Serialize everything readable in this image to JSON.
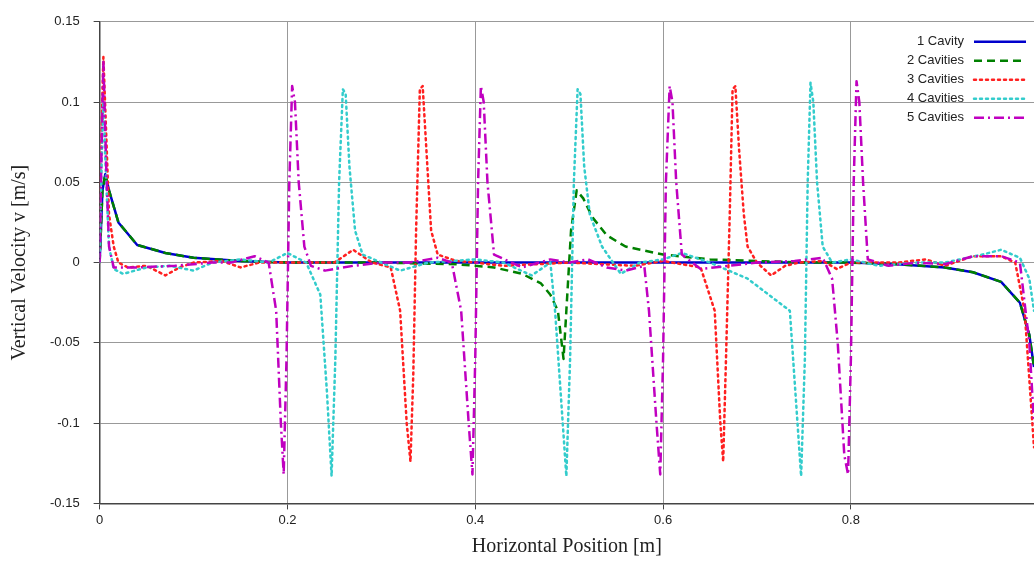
{
  "chart_data": {
    "type": "line",
    "xlabel": "Horizontal Position [m]",
    "ylabel": "Vertical Velocity v [m/s]",
    "xlim": [
      0,
      0.995
    ],
    "xticks": [
      0,
      0.2,
      0.4,
      0.6,
      0.8
    ],
    "ylim": [
      -0.15,
      0.15
    ],
    "yticks": [
      -0.15,
      -0.1,
      -0.05,
      0,
      0.05,
      0.1,
      0.15
    ],
    "grid": true,
    "legend": "top right",
    "marker": "none",
    "series": [
      {
        "name": "1 Cavity",
        "color": "#0000cc",
        "line_style": "solid",
        "x": [
          0,
          0.003,
          0.006,
          0.01,
          0.02,
          0.04,
          0.07,
          0.1,
          0.15,
          0.2,
          0.8,
          0.85,
          0.9,
          0.93,
          0.96,
          0.98,
          0.99,
          0.995
        ],
        "values": [
          0,
          0.045,
          0.055,
          0.045,
          0.025,
          0.011,
          0.006,
          0.003,
          0.001,
          0,
          0,
          -0.001,
          -0.003,
          -0.006,
          -0.012,
          -0.025,
          -0.045,
          -0.065
        ]
      },
      {
        "name": "2 Cavities",
        "color": "#008000",
        "line_style": "dashed",
        "x": [
          0,
          0.003,
          0.006,
          0.01,
          0.02,
          0.04,
          0.07,
          0.1,
          0.15,
          0.2,
          0.3,
          0.38,
          0.42,
          0.45,
          0.47,
          0.48,
          0.488,
          0.494,
          0.497,
          0.502,
          0.508,
          0.515,
          0.525,
          0.54,
          0.56,
          0.6,
          0.65,
          0.7,
          0.75,
          0.8,
          0.85,
          0.9,
          0.93,
          0.96,
          0.98,
          0.99,
          0.995
        ],
        "values": [
          0,
          0.045,
          0.055,
          0.045,
          0.025,
          0.011,
          0.006,
          0.003,
          0.001,
          0,
          0,
          -0.001,
          -0.003,
          -0.007,
          -0.013,
          -0.02,
          -0.03,
          -0.06,
          -0.03,
          0.02,
          0.045,
          0.04,
          0.028,
          0.017,
          0.01,
          0.005,
          0.002,
          0.001,
          0,
          0,
          -0.001,
          -0.003,
          -0.006,
          -0.012,
          -0.025,
          -0.045,
          -0.065
        ]
      },
      {
        "name": "3 Cavities",
        "color": "#ff2020",
        "line_style": "dotted",
        "x": [
          0,
          0.002,
          0.004,
          0.007,
          0.01,
          0.015,
          0.02,
          0.03,
          0.05,
          0.07,
          0.085,
          0.1,
          0.13,
          0.15,
          0.17,
          0.2,
          0.25,
          0.27,
          0.29,
          0.31,
          0.32,
          0.327,
          0.331,
          0.334,
          0.337,
          0.341,
          0.344,
          0.348,
          0.353,
          0.36,
          0.38,
          0.4,
          0.43,
          0.5,
          0.57,
          0.6,
          0.64,
          0.655,
          0.661,
          0.664,
          0.667,
          0.671,
          0.674,
          0.677,
          0.681,
          0.686,
          0.69,
          0.7,
          0.715,
          0.73,
          0.745,
          0.77,
          0.785,
          0.8,
          0.85,
          0.88,
          0.9,
          0.93,
          0.96,
          0.975,
          0.985,
          0.995
        ],
        "values": [
          0,
          0.08,
          0.128,
          0.08,
          0.03,
          0.01,
          0,
          -0.003,
          -0.002,
          -0.008,
          -0.003,
          0,
          0.001,
          -0.003,
          0,
          0,
          0,
          0.008,
          0,
          -0.003,
          -0.03,
          -0.1,
          -0.124,
          -0.07,
          0.02,
          0.108,
          0.11,
          0.07,
          0.02,
          0.005,
          0.001,
          0,
          -0.002,
          0,
          -0.002,
          0.001,
          -0.003,
          -0.03,
          -0.1,
          -0.124,
          -0.06,
          0.03,
          0.108,
          0.11,
          0.07,
          0.03,
          0.01,
          0,
          -0.008,
          -0.002,
          0,
          0.001,
          -0.004,
          0,
          0,
          0.002,
          -0.002,
          0.004,
          0.004,
          0,
          -0.03,
          -0.115
        ]
      },
      {
        "name": "4 Cavities",
        "color": "#33cccc",
        "line_style": "dotted",
        "x": [
          0,
          0.002,
          0.004,
          0.007,
          0.01,
          0.015,
          0.025,
          0.05,
          0.075,
          0.1,
          0.12,
          0.15,
          0.18,
          0.2,
          0.22,
          0.235,
          0.242,
          0.247,
          0.251,
          0.255,
          0.259,
          0.262,
          0.266,
          0.272,
          0.28,
          0.3,
          0.32,
          0.35,
          0.4,
          0.43,
          0.46,
          0.48,
          0.485,
          0.492,
          0.497,
          0.501,
          0.505,
          0.509,
          0.512,
          0.516,
          0.522,
          0.535,
          0.555,
          0.575,
          0.6,
          0.62,
          0.65,
          0.69,
          0.735,
          0.742,
          0.747,
          0.751,
          0.754,
          0.757,
          0.76,
          0.764,
          0.77,
          0.78,
          0.8,
          0.83,
          0.87,
          0.9,
          0.94,
          0.96,
          0.98,
          0.99,
          0.995
        ],
        "values": [
          0,
          0.06,
          0.1,
          0.05,
          0.01,
          -0.004,
          -0.007,
          -0.003,
          -0.002,
          -0.005,
          0,
          0.002,
          0,
          0.006,
          0,
          -0.02,
          -0.08,
          -0.133,
          -0.06,
          0.05,
          0.108,
          0.105,
          0.06,
          0.02,
          0.005,
          0,
          -0.005,
          0,
          0.002,
          0,
          -0.008,
          0,
          -0.03,
          -0.09,
          -0.133,
          -0.06,
          0.05,
          0.108,
          0.105,
          0.06,
          0.03,
          0.01,
          -0.007,
          0,
          0.002,
          0.006,
          0,
          -0.01,
          -0.03,
          -0.09,
          -0.133,
          -0.06,
          0.05,
          0.112,
          0.1,
          0.05,
          0.01,
          0,
          0.002,
          -0.002,
          0,
          0,
          0.005,
          0.008,
          0.003,
          -0.01,
          -0.03
        ]
      },
      {
        "name": "5 Cavities",
        "color": "#c000c0",
        "line_style": "dashdot",
        "x": [
          0,
          0.002,
          0.004,
          0.007,
          0.01,
          0.015,
          0.04,
          0.08,
          0.12,
          0.14,
          0.165,
          0.18,
          0.188,
          0.193,
          0.196,
          0.199,
          0.202,
          0.205,
          0.208,
          0.212,
          0.218,
          0.225,
          0.24,
          0.27,
          0.3,
          0.33,
          0.36,
          0.375,
          0.385,
          0.393,
          0.397,
          0.4,
          0.403,
          0.406,
          0.409,
          0.413,
          0.42,
          0.45,
          0.48,
          0.5,
          0.52,
          0.54,
          0.56,
          0.58,
          0.585,
          0.593,
          0.597,
          0.6,
          0.603,
          0.607,
          0.61,
          0.614,
          0.62,
          0.64,
          0.67,
          0.7,
          0.74,
          0.77,
          0.78,
          0.786,
          0.793,
          0.797,
          0.8,
          0.803,
          0.806,
          0.809,
          0.813,
          0.818,
          0.84,
          0.87,
          0.9,
          0.93,
          0.96,
          0.98,
          0.99,
          0.995
        ],
        "values": [
          0,
          0.07,
          0.125,
          0.06,
          0.01,
          -0.003,
          -0.003,
          -0.002,
          0,
          0,
          0.004,
          0,
          -0.03,
          -0.1,
          -0.132,
          -0.06,
          0.05,
          0.11,
          0.1,
          0.05,
          0.01,
          -0.002,
          -0.005,
          -0.002,
          0,
          0,
          0.003,
          0,
          -0.03,
          -0.1,
          -0.132,
          -0.06,
          0.05,
          0.11,
          0.1,
          0.05,
          0.005,
          -0.003,
          0.002,
          0,
          0.002,
          -0.003,
          -0.005,
          -0.002,
          -0.03,
          -0.1,
          -0.132,
          -0.06,
          0.05,
          0.11,
          0.1,
          0.05,
          0.005,
          -0.004,
          -0.002,
          0,
          0.001,
          0.003,
          -0.01,
          -0.05,
          -0.12,
          -0.132,
          -0.06,
          0.05,
          0.113,
          0.1,
          0.05,
          0.002,
          -0.002,
          0,
          -0.001,
          0.004,
          0.004,
          0,
          -0.05,
          -0.1
        ]
      }
    ]
  }
}
